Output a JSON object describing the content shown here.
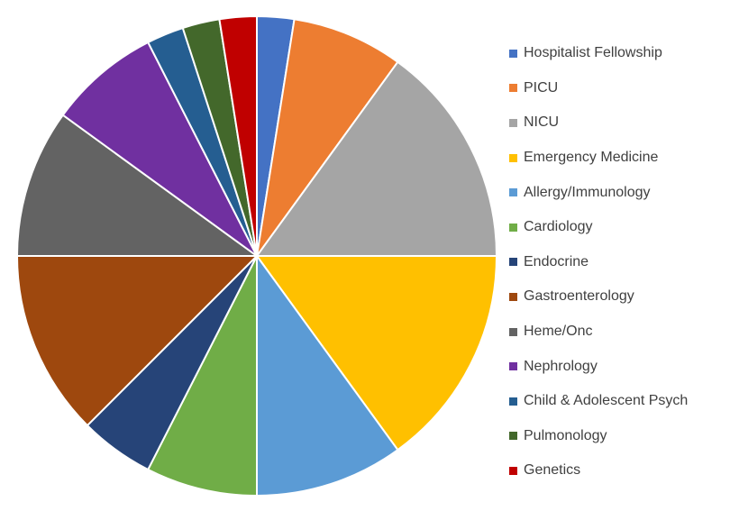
{
  "chart_data": {
    "type": "pie",
    "title": "",
    "start_angle_deg": 0,
    "direction": "clockwise",
    "legend_position": "right",
    "categories": [
      "Hospitalist Fellowship",
      "PICU",
      "NICU",
      "Emergency Medicine",
      "Allergy/Immunology",
      "Cardiology",
      "Endocrine",
      "Gastroenterology",
      "Heme/Onc",
      "Nephrology",
      "Child & Adolescent Psych",
      "Pulmonology",
      "Genetics"
    ],
    "values": [
      1,
      3,
      6,
      6,
      4,
      3,
      2,
      5,
      4,
      3,
      1,
      1,
      1
    ],
    "colors": [
      "#4472C4",
      "#ED7D31",
      "#A5A5A5",
      "#FFC000",
      "#5B9BD5",
      "#70AD47",
      "#264478",
      "#9E480E",
      "#636363",
      "#7030A0",
      "#255E91",
      "#43682B",
      "#C00000"
    ]
  },
  "legend": {
    "items": [
      {
        "label": "Hospitalist Fellowship"
      },
      {
        "label": "PICU"
      },
      {
        "label": "NICU"
      },
      {
        "label": "Emergency Medicine"
      },
      {
        "label": "Allergy/Immunology"
      },
      {
        "label": "Cardiology"
      },
      {
        "label": "Endocrine"
      },
      {
        "label": "Gastroenterology"
      },
      {
        "label": "Heme/Onc"
      },
      {
        "label": "Nephrology"
      },
      {
        "label": "Child & Adolescent Psych"
      },
      {
        "label": "Pulmonology"
      },
      {
        "label": "Genetics"
      }
    ]
  }
}
